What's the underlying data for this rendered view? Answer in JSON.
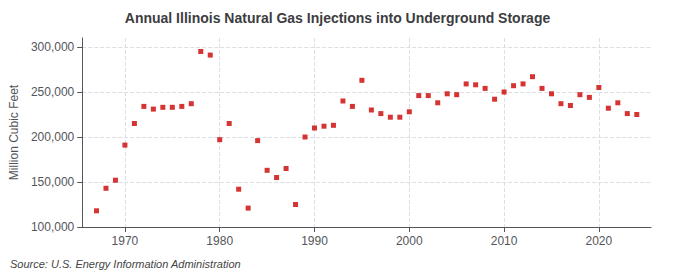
{
  "chart_data": {
    "type": "scatter",
    "title": "Annual Illinois Natural Gas Injections into Underground Storage",
    "ylabel": "Million Cubic Feet",
    "source": "Source: U.S. Energy Information Administration",
    "color": "#cc0000",
    "marker": "square",
    "grid": true,
    "x": [
      1967,
      1968,
      1969,
      1970,
      1971,
      1972,
      1973,
      1974,
      1975,
      1976,
      1977,
      1978,
      1979,
      1980,
      1981,
      1982,
      1983,
      1984,
      1985,
      1986,
      1987,
      1988,
      1989,
      1990,
      1991,
      1992,
      1993,
      1994,
      1995,
      1996,
      1997,
      1998,
      1999,
      2000,
      2001,
      2002,
      2003,
      2004,
      2005,
      2006,
      2007,
      2008,
      2009,
      2010,
      2011,
      2012,
      2013,
      2014,
      2015,
      2016,
      2017,
      2018,
      2019,
      2020,
      2021,
      2022,
      2023,
      2024
    ],
    "values": [
      118000,
      143000,
      152000,
      191000,
      215000,
      234000,
      231000,
      233000,
      233000,
      234000,
      237000,
      295000,
      291000,
      197000,
      215000,
      142000,
      121000,
      196000,
      163000,
      155000,
      165000,
      125000,
      200000,
      210000,
      212000,
      213000,
      240000,
      234000,
      263000,
      230000,
      226000,
      222000,
      222000,
      228000,
      246000,
      246000,
      238000,
      248000,
      247000,
      259000,
      258000,
      254000,
      242000,
      250000,
      257000,
      259000,
      267000,
      254000,
      248000,
      237000,
      235000,
      247000,
      244000,
      255000,
      232000,
      238000,
      226000,
      225000
    ],
    "xlim": [
      1965.5,
      2025.5
    ],
    "xticks": [
      1970,
      1980,
      1990,
      2000,
      2010,
      2020
    ],
    "ylim": [
      100000,
      310000
    ],
    "yticks": [
      {
        "value": 100000,
        "label": "100,000"
      },
      {
        "value": 150000,
        "label": "150,000"
      },
      {
        "value": 200000,
        "label": "200,000"
      },
      {
        "value": 250000,
        "label": "250,000"
      },
      {
        "value": 300000,
        "label": "300,000"
      }
    ]
  }
}
